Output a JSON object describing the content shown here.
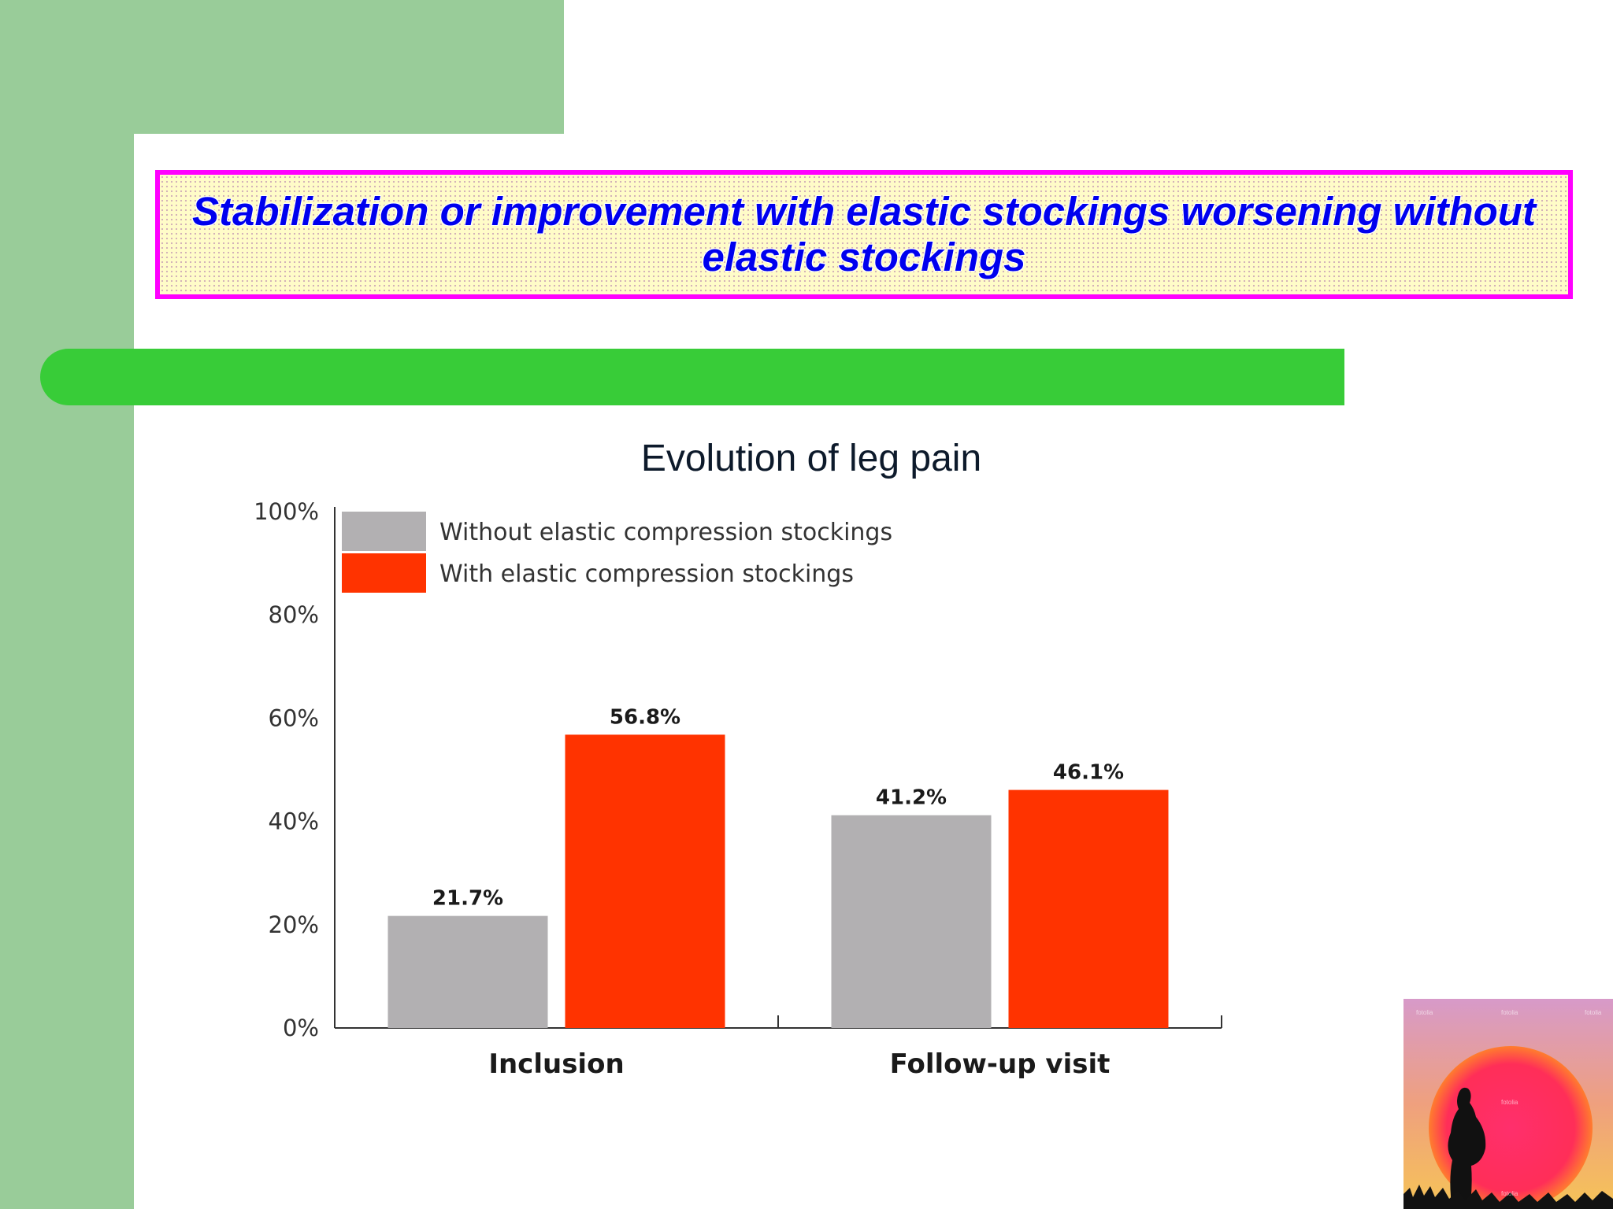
{
  "slide": {
    "title": "Stabilization or improvement with elastic stockings worsening without elastic stockings"
  },
  "colors": {
    "side_panel": "#99cc99",
    "title_border": "#ff00ff",
    "title_text": "#0000ee",
    "title_fill": "#fffcc8",
    "band": "#38cc38",
    "series_without": "#b2b0b2",
    "series_with": "#ff3300"
  },
  "chart_data": {
    "type": "bar",
    "title": "Evolution of leg pain",
    "xlabel": "",
    "ylabel": "",
    "categories": [
      "Inclusion",
      "Follow-up visit"
    ],
    "series": [
      {
        "name": "Without elastic compression stockings",
        "values": [
          21.7,
          41.2
        ],
        "labels": [
          "21.7%",
          "41.2%"
        ],
        "color": "#b2b0b2"
      },
      {
        "name": "With elastic compression stockings",
        "values": [
          56.8,
          46.1
        ],
        "labels": [
          "56.8%",
          "46.1%"
        ],
        "color": "#ff3300"
      }
    ],
    "ylim": [
      0,
      100
    ],
    "yticks": [
      0,
      20,
      40,
      60,
      80,
      100
    ],
    "ytick_labels": [
      "0%",
      "20%",
      "40%",
      "60%",
      "80%",
      "100%"
    ],
    "grid": false,
    "legend": "top-left"
  },
  "image": {
    "description_icon": "pregnant-woman-sunset-photo",
    "watermark": "fotolia"
  }
}
